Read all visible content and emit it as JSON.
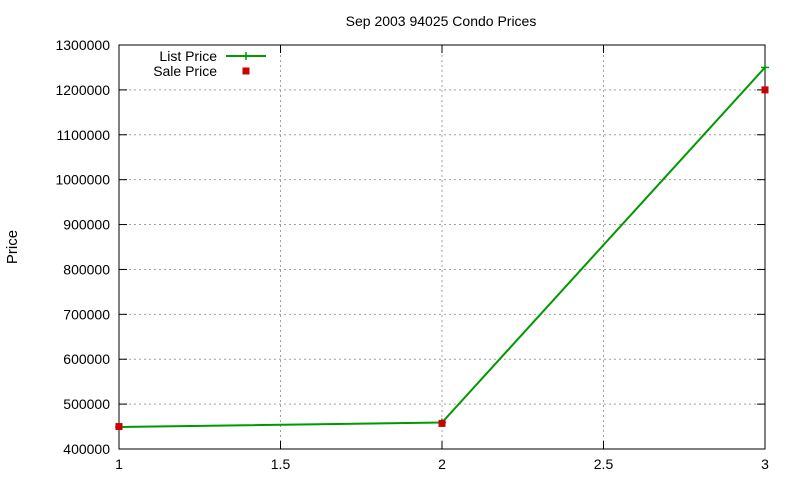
{
  "chart_data": {
    "type": "line",
    "title": "Sep 2003 94025 Condo Prices",
    "xlabel": "",
    "ylabel": "Price",
    "xlim": [
      1,
      3
    ],
    "ylim": [
      400000,
      1300000
    ],
    "x_ticks": [
      "1",
      "1.5",
      "2",
      "2.5",
      "3"
    ],
    "y_ticks": [
      "400000",
      "500000",
      "600000",
      "700000",
      "800000",
      "900000",
      "1000000",
      "1100000",
      "1200000",
      "1300000"
    ],
    "grid": true,
    "legend_position": "top-left",
    "series": [
      {
        "name": "List Price",
        "style": "lines+points",
        "marker": "plus",
        "color": "#009900",
        "x": [
          1,
          2,
          3
        ],
        "y": [
          449000,
          459000,
          1250000
        ]
      },
      {
        "name": "Sale Price",
        "style": "points",
        "marker": "square",
        "color": "#cc0000",
        "x": [
          1,
          2,
          3
        ],
        "y": [
          450000,
          457000,
          1200000
        ]
      }
    ]
  }
}
